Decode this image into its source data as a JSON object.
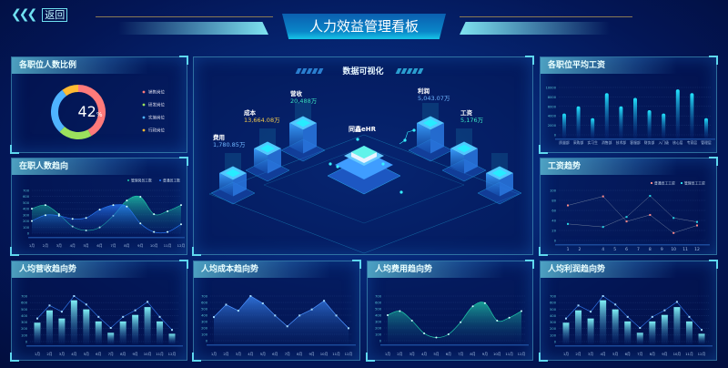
{
  "header": {
    "back_label": "返回",
    "title": "人力效益管理看板",
    "back_icon": "triple-chevron-left"
  },
  "panels": {
    "ratio": {
      "title": "各职位人数比例",
      "center_value": "42",
      "center_unit": "%"
    },
    "headcount": {
      "title": "在职人数趋向"
    },
    "center": {
      "title": "数据可视化",
      "hub": "同鑫eHR",
      "metrics": [
        {
          "label": "费用",
          "value": "1,780.85万",
          "color": "#6fb6ff"
        },
        {
          "label": "成本",
          "value": "13,664.08万",
          "color": "#f2c94c"
        },
        {
          "label": "营收",
          "value": "20,488万",
          "color": "#3be6c4"
        },
        {
          "label": "利润",
          "value": "5,043.07万",
          "color": "#6fb6ff"
        },
        {
          "label": "工资",
          "value": "5,176万",
          "color": "#3be6c4"
        }
      ]
    },
    "avg_salary": {
      "title": "各职位平均工资"
    },
    "salary_trend": {
      "title": "工资趋势"
    },
    "rev": {
      "title": "人均营收趋向势"
    },
    "cost": {
      "title": "人均成本趋向势"
    },
    "expense": {
      "title": "人均费用趋向势"
    },
    "profit": {
      "title": "人均利润趋向势"
    }
  },
  "chart_data": [
    {
      "id": "ratio",
      "type": "pie",
      "donut": true,
      "categories": [
        "销售岗位",
        "研发岗位",
        "实施岗位",
        "行政岗位"
      ],
      "values": [
        42,
        20,
        28,
        10
      ],
      "colors": [
        "#ff7a7a",
        "#9be15d",
        "#4fb3ff",
        "#ffbb33"
      ]
    },
    {
      "id": "headcount",
      "type": "area",
      "categories": [
        "1月",
        "2月",
        "3月",
        "4月",
        "5月",
        "6月",
        "7月",
        "8月",
        "9月",
        "10月",
        "11月",
        "12月"
      ],
      "yticks": [
        0,
        100,
        200,
        300,
        400,
        500,
        600,
        700
      ],
      "ylim": [
        0,
        700
      ],
      "series": [
        {
          "name": "管理岗员工数",
          "values": [
            400,
            460,
            310,
            110,
            45,
            95,
            285,
            535,
            595,
            310,
            360,
            460
          ],
          "color": "#1fc7a8"
        },
        {
          "name": "普通员工数",
          "values": [
            200,
            295,
            285,
            235,
            250,
            385,
            460,
            435,
            160,
            20,
            20,
            145
          ],
          "color": "#2a7dff"
        }
      ]
    },
    {
      "id": "avg_salary",
      "type": "bar",
      "categories": [
        "质量部",
        "采购部",
        "实习生",
        "消售部",
        "技术部",
        "客服部",
        "财务部",
        "入门级",
        "核心层",
        "专家层",
        "管理层"
      ],
      "yticks": [
        0,
        2000,
        4000,
        6000,
        8000,
        10000
      ],
      "ylim": [
        0,
        10000
      ],
      "values": [
        4500,
        6000,
        3500,
        8800,
        6000,
        7800,
        5200,
        4500,
        9600,
        8800,
        3500
      ]
    },
    {
      "id": "salary_trend",
      "type": "line",
      "x": [
        1,
        4,
        6,
        8,
        10,
        12
      ],
      "xticks": [
        1,
        2,
        4,
        5,
        6,
        7,
        8,
        9,
        10,
        11,
        12
      ],
      "yticks": [
        0,
        20,
        40,
        60,
        80,
        100
      ],
      "ylim": [
        0,
        100
      ],
      "series": [
        {
          "name": "普通员工工资",
          "values": [
            70,
            88,
            38,
            51,
            15,
            30
          ],
          "color": "#ff8a8a"
        },
        {
          "name": "管理员工工资",
          "values": [
            33,
            27,
            47,
            89,
            45,
            37
          ],
          "color": "#27d6e6"
        }
      ]
    },
    {
      "id": "rev",
      "type": "bar+line",
      "categories": [
        "1月",
        "2月",
        "3月",
        "4月",
        "5月",
        "6月",
        "7月",
        "8月",
        "9月",
        "10月",
        "11月",
        "12月"
      ],
      "yticks": [
        0,
        100,
        200,
        300,
        400,
        500,
        600,
        700
      ],
      "ylim": [
        0,
        700
      ],
      "bars": [
        290,
        480,
        355,
        635,
        495,
        310,
        135,
        310,
        410,
        530,
        310,
        120
      ],
      "line": [
        355,
        555,
        460,
        700,
        570,
        380,
        210,
        380,
        480,
        610,
        380,
        180
      ]
    },
    {
      "id": "cost",
      "type": "area",
      "categories": [
        "1月",
        "2月",
        "3月",
        "4月",
        "5月",
        "6月",
        "7月",
        "8月",
        "9月",
        "10月",
        "11月",
        "12月"
      ],
      "yticks": [
        0,
        100,
        200,
        300,
        400,
        500,
        600,
        700
      ],
      "ylim": [
        0,
        700
      ],
      "series": [
        {
          "values": [
            370,
            565,
            470,
            720,
            585,
            395,
            225,
            395,
            490,
            625,
            395,
            195
          ],
          "color": "#3d8cff"
        }
      ]
    },
    {
      "id": "expense",
      "type": "area",
      "categories": [
        "1月",
        "2月",
        "3月",
        "4月",
        "5月",
        "6月",
        "7月",
        "8月",
        "9月",
        "10月",
        "11月",
        "12月"
      ],
      "yticks": [
        0,
        100,
        200,
        300,
        400,
        500,
        600,
        700
      ],
      "ylim": [
        0,
        700
      ],
      "series": [
        {
          "values": [
            400,
            465,
            315,
            115,
            50,
            100,
            290,
            540,
            590,
            315,
            360,
            465
          ],
          "color": "#1fc7a8"
        }
      ]
    },
    {
      "id": "profit",
      "type": "bar+line",
      "categories": [
        "1月",
        "2月",
        "3月",
        "4月",
        "5月",
        "6月",
        "7月",
        "8月",
        "9月",
        "10月",
        "11月",
        "12月"
      ],
      "yticks": [
        0,
        100,
        200,
        300,
        400,
        500,
        600,
        700
      ],
      "ylim": [
        0,
        700
      ],
      "bars": [
        290,
        480,
        355,
        635,
        495,
        310,
        135,
        310,
        410,
        530,
        310,
        120
      ],
      "line": [
        355,
        555,
        460,
        700,
        570,
        380,
        210,
        380,
        480,
        610,
        380,
        180
      ]
    }
  ]
}
